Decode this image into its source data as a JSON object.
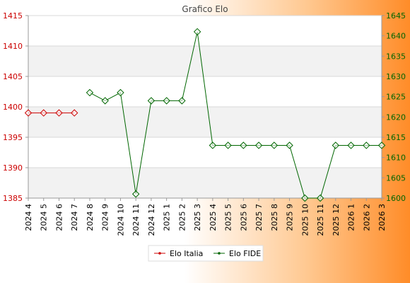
{
  "chart_data": {
    "type": "line",
    "title": "Grafico Elo",
    "categories": [
      "2024 4",
      "2024 5",
      "2024 6",
      "2024 7",
      "2024 8",
      "2024 9",
      "2024 10",
      "2024 11",
      "2024 12",
      "2025 1",
      "2025 2",
      "2025 3",
      "2025 4",
      "2025 5",
      "2025 6",
      "2025 7",
      "2025 8",
      "2025 9",
      "2025 10",
      "2025 11",
      "2025 12",
      "2026 1",
      "2026 2",
      "2026 3"
    ],
    "y_left": {
      "ylim": [
        1385,
        1415
      ],
      "ticks": [
        1385,
        1390,
        1395,
        1400,
        1405,
        1410,
        1415
      ],
      "color": "#cc0000"
    },
    "y_right": {
      "ylim": [
        1600,
        1645
      ],
      "ticks": [
        1600,
        1605,
        1610,
        1615,
        1620,
        1625,
        1630,
        1635,
        1640,
        1645
      ],
      "color": "#006600"
    },
    "series": [
      {
        "name": "Elo Italia",
        "axis": "left",
        "color": "#cc0000",
        "values": [
          1399,
          1399,
          1399,
          1399,
          null,
          null,
          null,
          null,
          null,
          null,
          null,
          null,
          null,
          null,
          null,
          null,
          null,
          null,
          null,
          null,
          null,
          null,
          null,
          null
        ]
      },
      {
        "name": "Elo FIDE",
        "axis": "right",
        "color": "#006600",
        "values": [
          null,
          null,
          null,
          null,
          1626,
          1624,
          1626,
          1601,
          1624,
          1624,
          1624,
          1641,
          1613,
          1613,
          1613,
          1613,
          1613,
          1613,
          1600,
          1600,
          1613,
          1613,
          1613,
          1613
        ]
      }
    ],
    "grid": true,
    "legend_position": "bottom"
  }
}
